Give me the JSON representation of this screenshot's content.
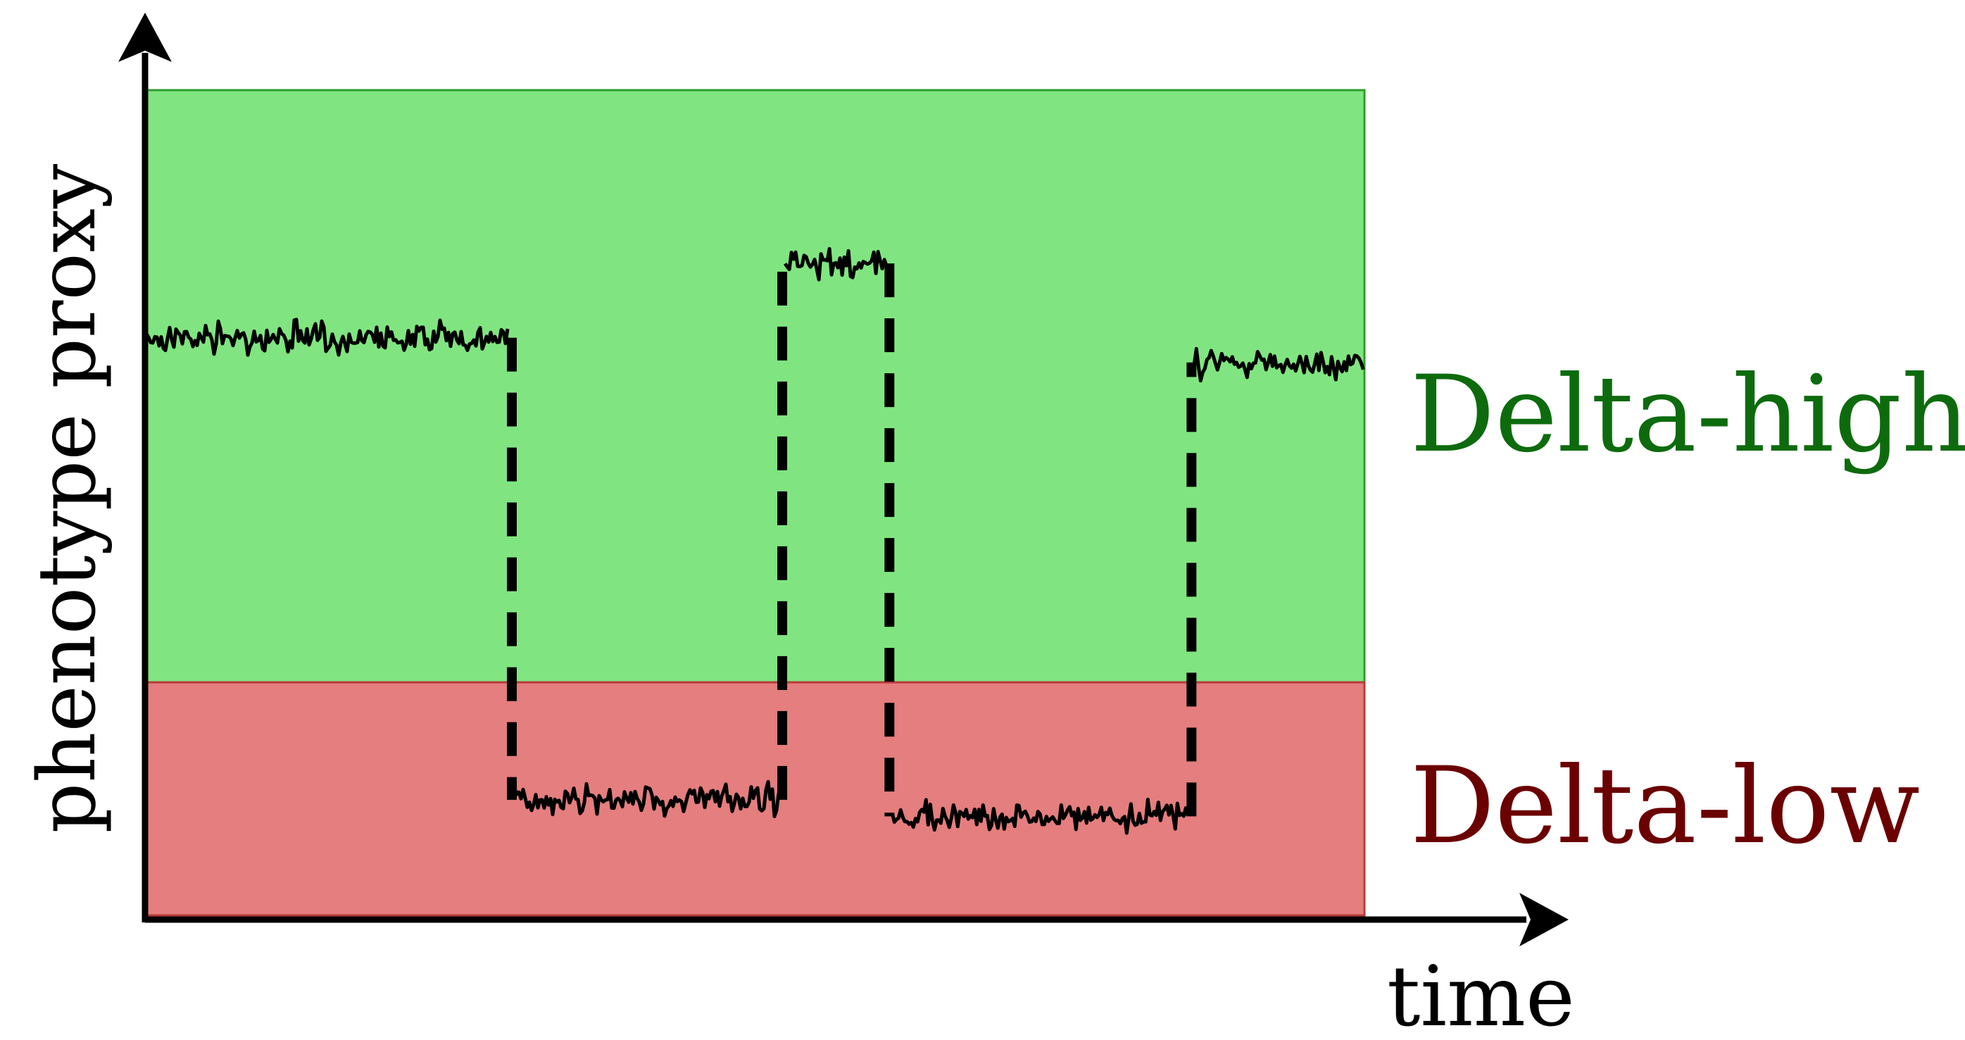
{
  "axes": {
    "x_label": "time",
    "y_label": "phenotype proxy"
  },
  "regions": [
    {
      "key": "high",
      "label": "Delta-high",
      "fill": "#80e580",
      "edge": "#2e9d2e",
      "label_color": "#0d6b0d"
    },
    {
      "key": "low",
      "label": "Delta-low",
      "fill": "#e57e7e",
      "edge": "#b83a3a",
      "label_color": "#6b0000"
    }
  ],
  "trace": {
    "color": "#000000",
    "segments": [
      {
        "state": "high",
        "level": 0.7,
        "from": 0.0,
        "to": 0.3
      },
      {
        "state": "low",
        "level": 0.14,
        "from": 0.3,
        "to": 0.522
      },
      {
        "state": "high",
        "level": 0.79,
        "from": 0.522,
        "to": 0.61
      },
      {
        "state": "low",
        "level": 0.12,
        "from": 0.61,
        "to": 0.858
      },
      {
        "state": "high",
        "level": 0.67,
        "from": 0.858,
        "to": 1.0
      }
    ],
    "transitions_style": "dashed"
  }
}
